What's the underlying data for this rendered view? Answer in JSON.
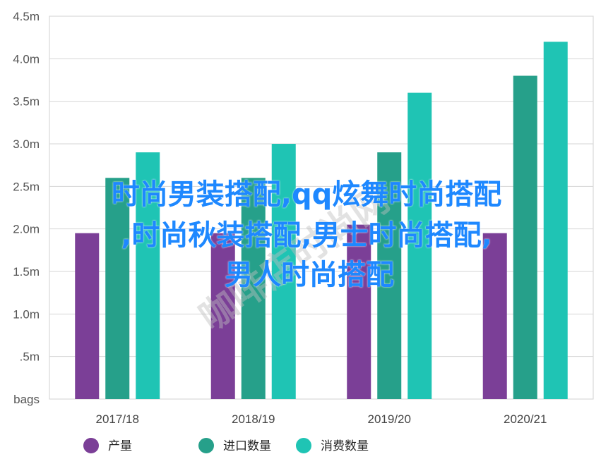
{
  "chart_data": {
    "type": "bar",
    "categories": [
      "2017/18",
      "2018/19",
      "2019/20",
      "2020/21"
    ],
    "series": [
      {
        "name": "产量",
        "values": [
          1.95,
          1.95,
          2.05,
          1.95
        ],
        "color": "#7b3f97"
      },
      {
        "name": "进口数量",
        "values": [
          2.6,
          2.6,
          2.9,
          3.8
        ],
        "color": "#26a08a"
      },
      {
        "name": "消费数量",
        "values": [
          2.9,
          3.0,
          3.6,
          4.2
        ],
        "color": "#1fc4b4"
      }
    ],
    "y_ticks": [
      "bags",
      ".5m",
      "1.0m",
      "1.5m",
      "2.0m",
      "2.5m",
      "3.0m",
      "3.5m",
      "4.0m",
      "4.5m"
    ],
    "ylim": [
      0,
      4.5
    ],
    "grid": true,
    "legend_position": "bottom"
  },
  "overlay": {
    "line1": "时尚男装搭配,qq炫舞时尚搭配",
    "line2": ",时尚秋装搭配,男士时尚搭配,",
    "line3": "男人时尚搭配",
    "color": "#1e88ff"
  },
  "watermark": {
    "text": "咖啡店时尚网"
  }
}
